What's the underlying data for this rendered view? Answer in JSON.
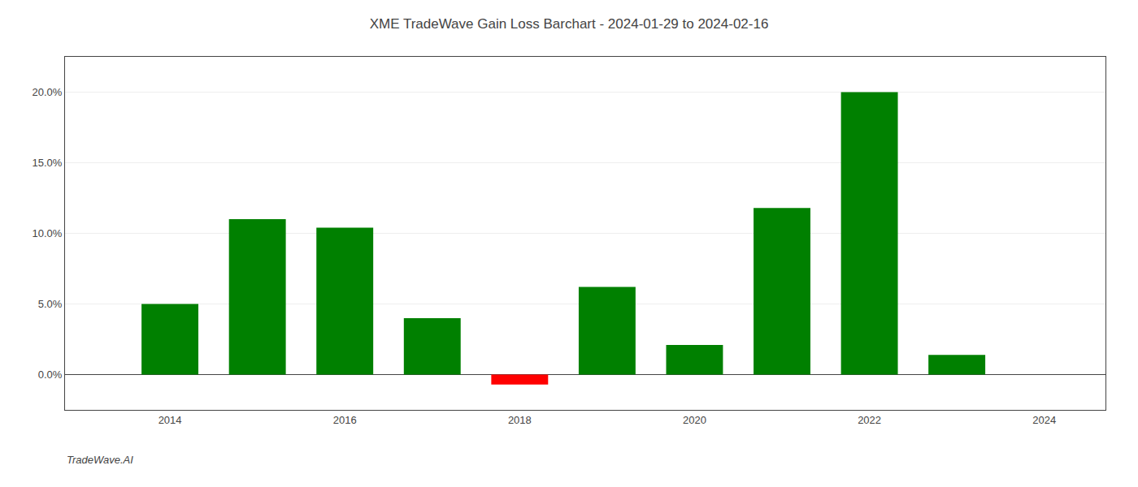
{
  "chart_data": {
    "type": "bar",
    "title": "XME TradeWave Gain Loss Barchart - 2024-01-29 to 2024-02-16",
    "annotations": [
      "TradeWave.AI"
    ],
    "x": [
      2014,
      2015,
      2016,
      2017,
      2018,
      2019,
      2020,
      2021,
      2022,
      2023
    ],
    "values": [
      0.05,
      0.11,
      0.104,
      0.04,
      -0.007,
      0.062,
      0.021,
      0.118,
      0.2,
      0.014
    ],
    "colors": [
      "#008000",
      "#008000",
      "#008000",
      "#008000",
      "#ff0000",
      "#008000",
      "#008000",
      "#008000",
      "#008000",
      "#008000"
    ],
    "xlim": [
      2012.8,
      2024.7
    ],
    "xticks": [
      2014,
      2016,
      2018,
      2020,
      2022,
      2024
    ],
    "ylim": [
      -0.025,
      0.225
    ],
    "yticks": [
      {
        "value": 0.0,
        "label": "0.0%"
      },
      {
        "value": 0.05,
        "label": "5.0%"
      },
      {
        "value": 0.1,
        "label": "10.0%"
      },
      {
        "value": 0.15,
        "label": "15.0%"
      },
      {
        "value": 0.2,
        "label": "20.0%"
      }
    ],
    "grid": true
  }
}
